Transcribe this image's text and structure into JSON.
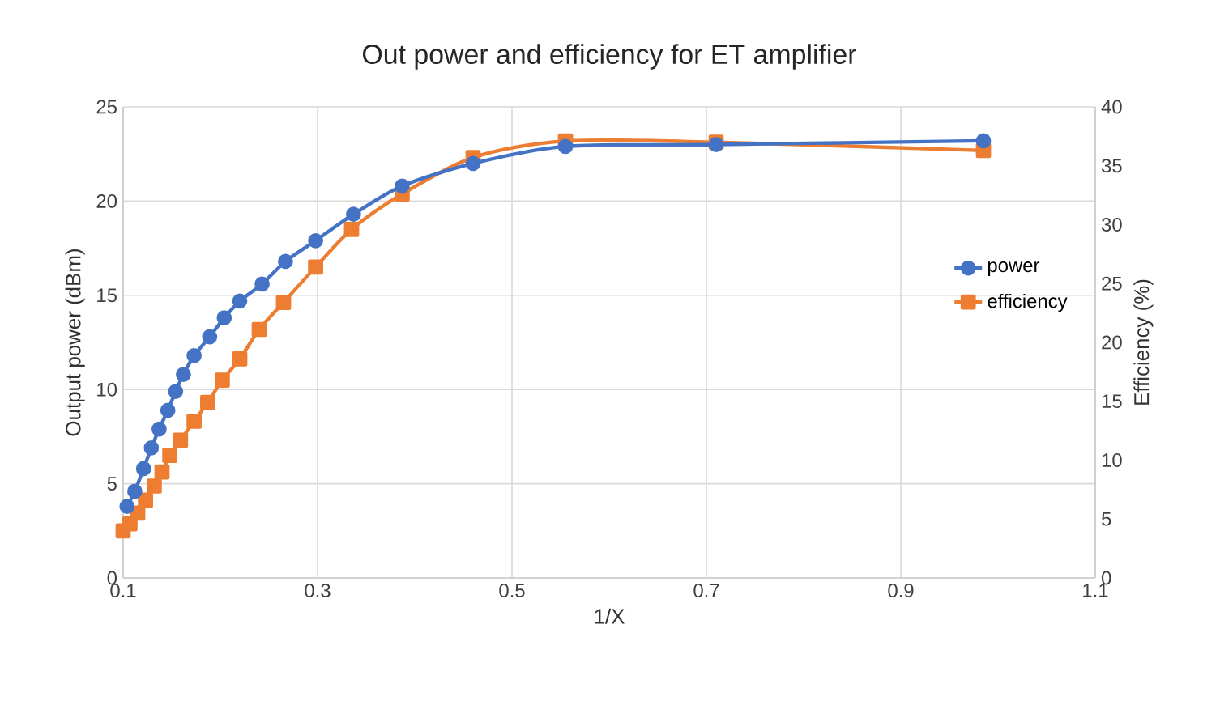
{
  "chart_data": {
    "type": "line",
    "title": "Out power and efficiency for ET amplifier",
    "xlabel": "1/X",
    "ylabel": "Output power (dBm)",
    "y2label": "Efficiency (%)",
    "xlim": [
      0.1,
      1.1
    ],
    "xticks": [
      0.1,
      0.3,
      0.5,
      0.7,
      0.9,
      1.1
    ],
    "ylim": [
      0,
      25
    ],
    "yticks": [
      0,
      5,
      10,
      15,
      20,
      25
    ],
    "y2lim": [
      0,
      40
    ],
    "y2ticks": [
      0,
      5,
      10,
      15,
      20,
      25,
      30,
      35,
      40
    ],
    "grid": true,
    "legend": "right",
    "series": [
      {
        "name": "power",
        "color": "#4472c4",
        "marker": "circle",
        "x": [
          0.104,
          0.112,
          0.121,
          0.129,
          0.137,
          0.146,
          0.154,
          0.162,
          0.173,
          0.189,
          0.204,
          0.22,
          0.243,
          0.267,
          0.298,
          0.337,
          0.387,
          0.46,
          0.555,
          0.71,
          0.985
        ],
        "values": [
          3.8,
          4.6,
          5.8,
          6.9,
          7.9,
          8.9,
          9.9,
          10.8,
          11.8,
          12.8,
          13.8,
          14.7,
          15.6,
          16.8,
          17.9,
          19.3,
          20.8,
          22.0,
          22.9,
          23.0,
          23.2
        ]
      },
      {
        "name": "efficiency",
        "color": "#ed7d31",
        "marker": "square",
        "axis": "y2",
        "x": [
          0.1,
          0.107,
          0.115,
          0.123,
          0.132,
          0.14,
          0.148,
          0.159,
          0.173,
          0.187,
          0.202,
          0.22,
          0.24,
          0.265,
          0.298,
          0.335,
          0.387,
          0.46,
          0.555,
          0.71,
          0.985
        ],
        "values": [
          4.0,
          4.6,
          5.5,
          6.6,
          7.8,
          9.0,
          10.4,
          11.7,
          13.3,
          14.9,
          16.8,
          18.6,
          21.1,
          23.4,
          26.4,
          29.6,
          32.6,
          35.7,
          37.1,
          37.0,
          36.3
        ]
      }
    ]
  }
}
